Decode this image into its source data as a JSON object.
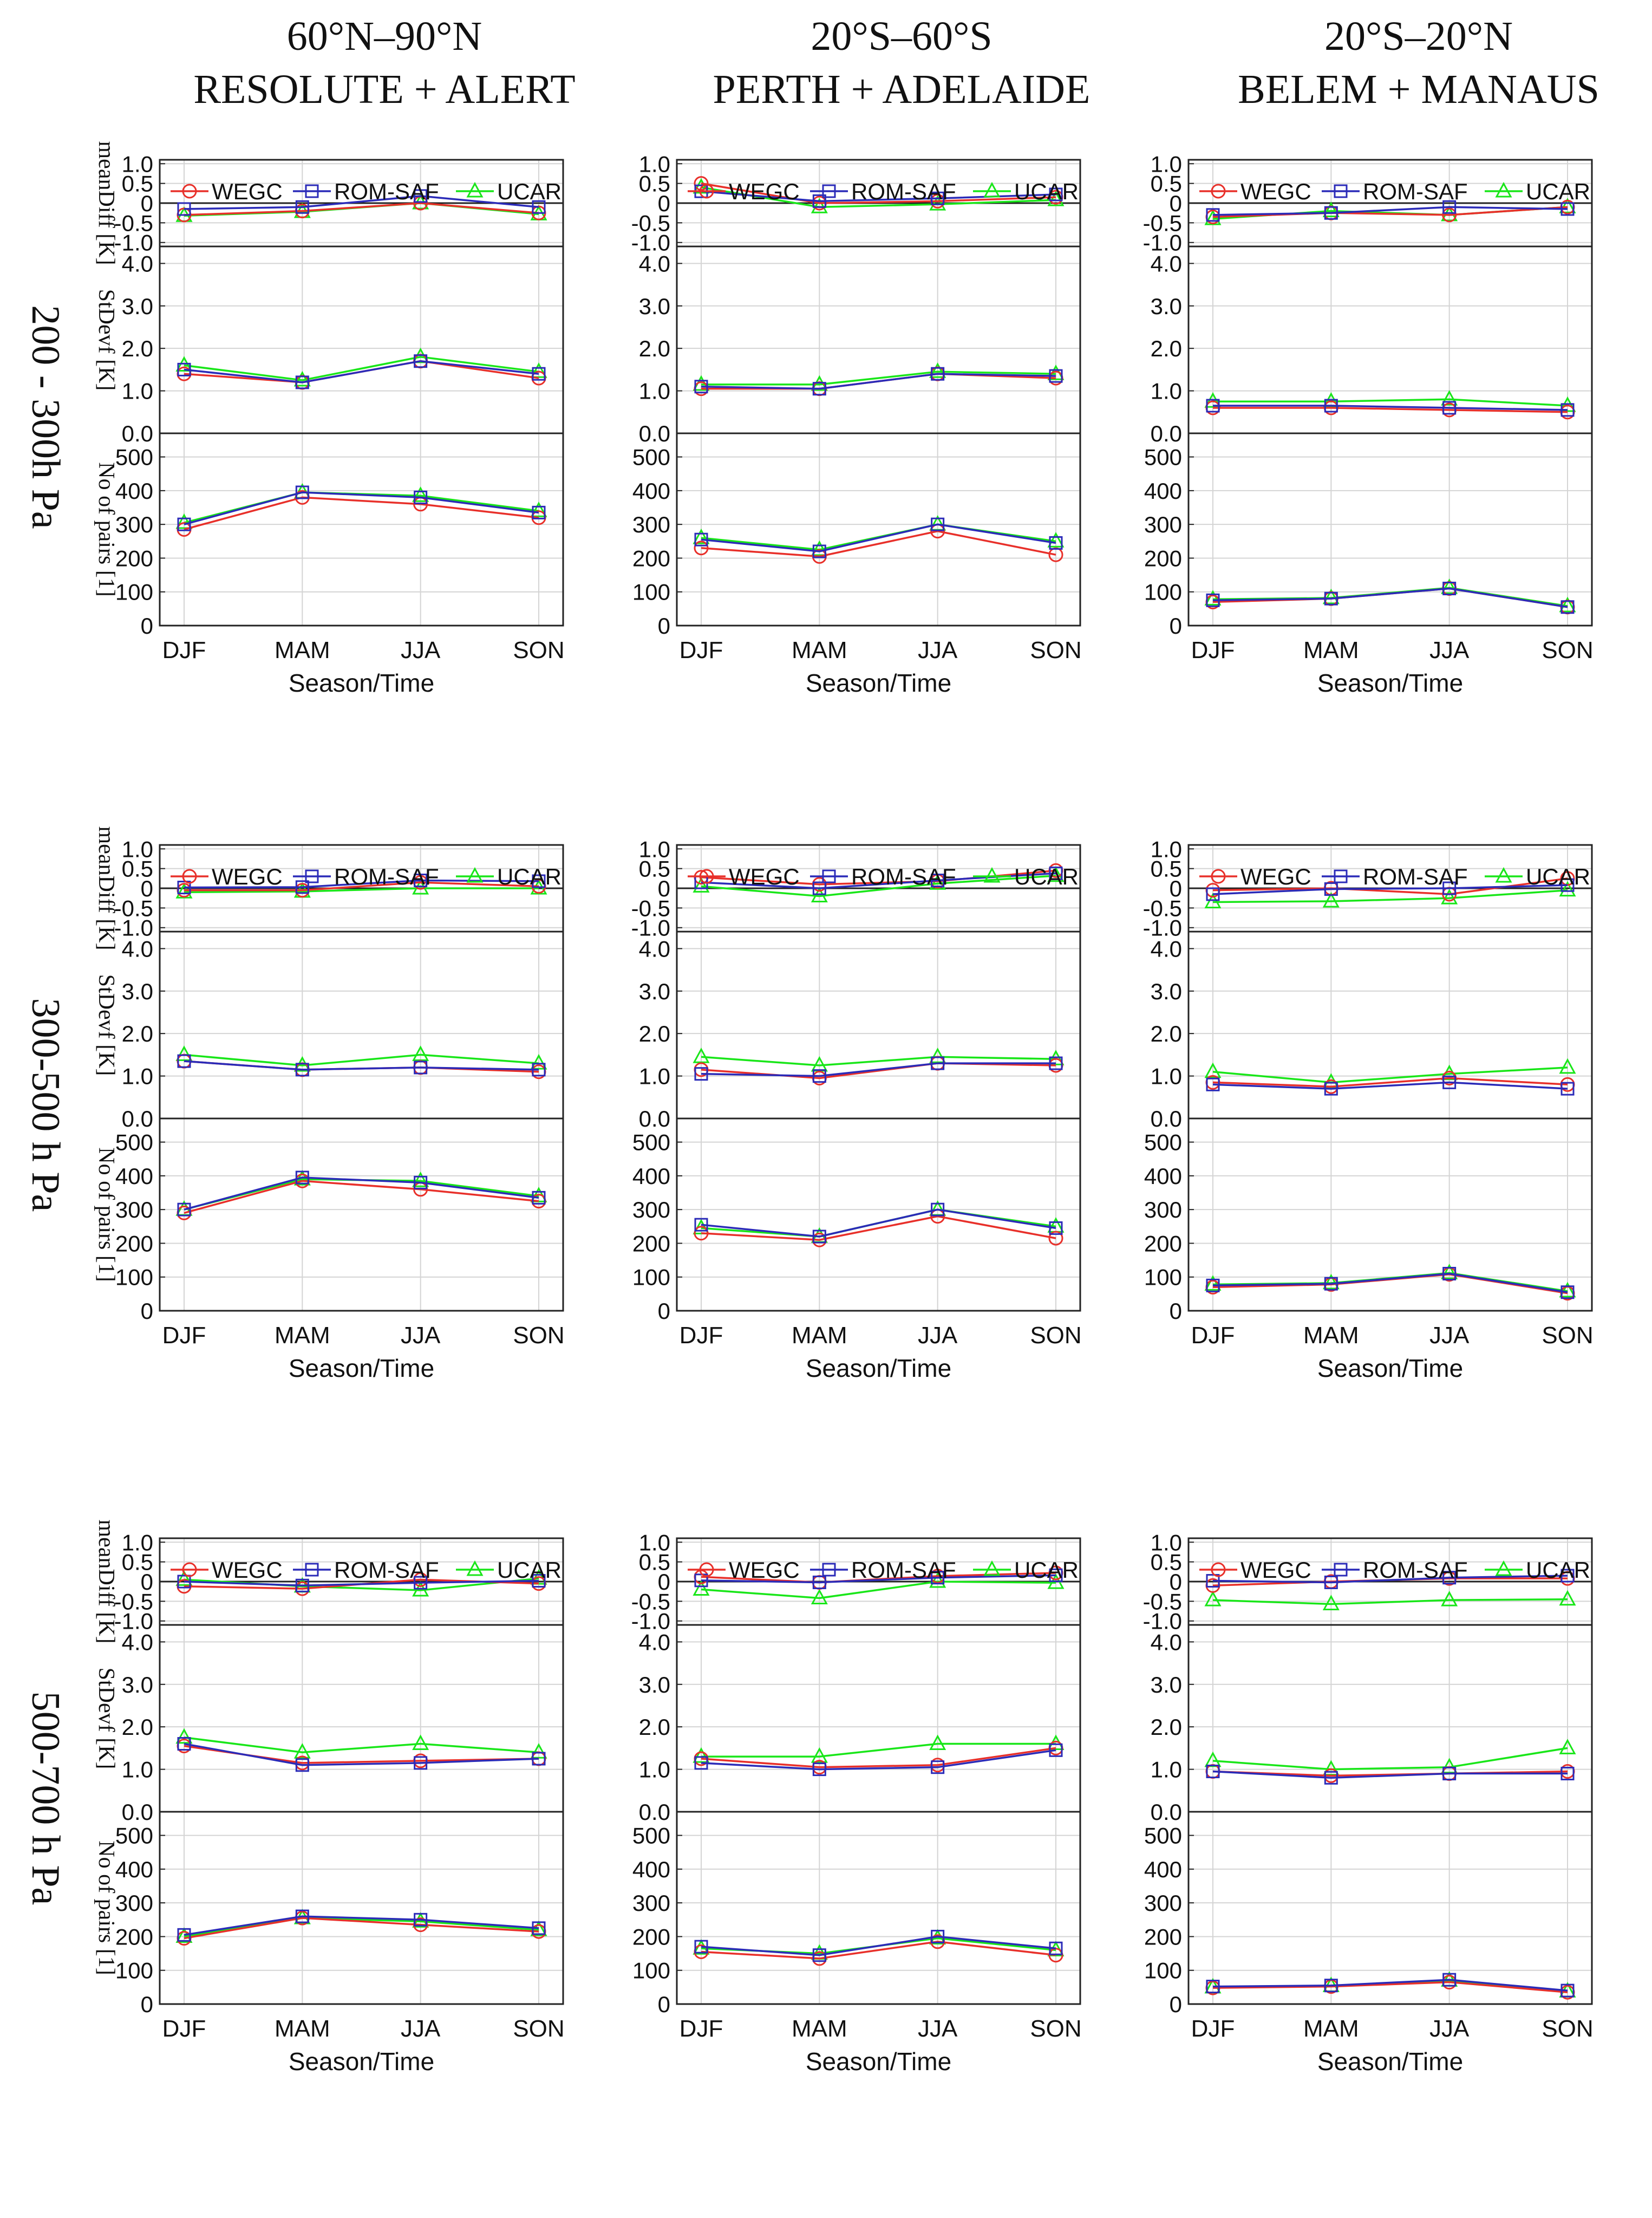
{
  "figure": {
    "columns": [
      {
        "title_line1": "60°N–90°N",
        "title_line2": "RESOLUTE + ALERT"
      },
      {
        "title_line1": "20°S–60°S",
        "title_line2": "PERTH + ADELAIDE"
      },
      {
        "title_line1": "20°S–20°N",
        "title_line2": "BELEM + MANAUS"
      }
    ],
    "rows": [
      "200 - 300h Pa",
      "300-500 h Pa",
      "500-700 h Pa"
    ],
    "colors": {
      "WEGC": "#e8302a",
      "ROM-SAF": "#2b2bb8",
      "UCAR": "#19e619",
      "zero_line": "#222222",
      "grid": "#d4d4d4"
    }
  },
  "chart_data": {
    "type": "line",
    "categories": [
      "DJF",
      "MAM",
      "JJA",
      "SON"
    ],
    "xlabel": "Season/Time",
    "legend": [
      "WEGC",
      "ROM-SAF",
      "UCAR"
    ],
    "legend_placement": "top, inside mean-difference panel",
    "panel_types": [
      {
        "key": "mean",
        "ylabel": "meanDiff [K]",
        "ylim": [
          -1.1,
          1.1
        ],
        "ticks": [
          1.0,
          0.5,
          0,
          -0.5,
          -1.0
        ],
        "tick_labels": [
          "1.0",
          "0.5",
          "0",
          "-0.5",
          "-1.0"
        ]
      },
      {
        "key": "sd",
        "ylabel": "StDevf [K]",
        "ylim": [
          0,
          4.4
        ],
        "ticks": [
          4.0,
          3.0,
          2.0,
          1.0,
          0.0
        ],
        "tick_labels": [
          "4.0",
          "3.0",
          "2.0",
          "1.0",
          "0.0"
        ]
      },
      {
        "key": "n",
        "ylabel": "No of pairs [1]",
        "ylim": [
          0,
          570
        ],
        "ticks": [
          500,
          400,
          300,
          200,
          100,
          0
        ],
        "tick_labels": [
          "500",
          "400",
          "300",
          "200",
          "100",
          "0"
        ]
      }
    ],
    "charts": [
      {
        "level": "200 - 300h Pa",
        "region": "60°N–90°N RESOLUTE + ALERT",
        "mean": {
          "WEGC": [
            -0.3,
            -0.2,
            0.0,
            -0.25
          ],
          "ROM-SAF": [
            -0.15,
            -0.1,
            0.18,
            -0.1
          ],
          "UCAR": [
            -0.32,
            -0.22,
            0.0,
            -0.28
          ]
        },
        "sd": {
          "WEGC": [
            1.4,
            1.2,
            1.7,
            1.3
          ],
          "ROM-SAF": [
            1.5,
            1.2,
            1.7,
            1.4
          ],
          "UCAR": [
            1.6,
            1.25,
            1.8,
            1.45
          ]
        },
        "n": {
          "WEGC": [
            285,
            380,
            360,
            320
          ],
          "ROM-SAF": [
            300,
            395,
            380,
            335
          ],
          "UCAR": [
            305,
            395,
            385,
            340
          ]
        }
      },
      {
        "level": "200 - 300h Pa",
        "region": "20°S–60°S PERTH + ADELAIDE",
        "mean": {
          "WEGC": [
            0.5,
            0.0,
            0.05,
            0.15
          ],
          "ROM-SAF": [
            0.3,
            0.05,
            0.12,
            0.22
          ],
          "UCAR": [
            0.4,
            -0.1,
            -0.03,
            0.08
          ]
        },
        "sd": {
          "WEGC": [
            1.05,
            1.05,
            1.4,
            1.3
          ],
          "ROM-SAF": [
            1.1,
            1.05,
            1.4,
            1.35
          ],
          "UCAR": [
            1.15,
            1.15,
            1.45,
            1.4
          ]
        },
        "n": {
          "WEGC": [
            230,
            205,
            280,
            210
          ],
          "ROM-SAF": [
            255,
            220,
            300,
            245
          ],
          "UCAR": [
            260,
            225,
            300,
            250
          ]
        }
      },
      {
        "level": "200 - 300h Pa",
        "region": "20°S–20°N BELEM + MANAUS",
        "mean": {
          "WEGC": [
            -0.35,
            -0.25,
            -0.3,
            -0.1
          ],
          "ROM-SAF": [
            -0.3,
            -0.25,
            -0.1,
            -0.15
          ],
          "UCAR": [
            -0.4,
            -0.2,
            -0.3,
            -0.1
          ]
        },
        "sd": {
          "WEGC": [
            0.6,
            0.6,
            0.55,
            0.5
          ],
          "ROM-SAF": [
            0.65,
            0.65,
            0.6,
            0.55
          ],
          "UCAR": [
            0.75,
            0.75,
            0.8,
            0.65
          ]
        },
        "n": {
          "WEGC": [
            70,
            80,
            110,
            55
          ],
          "ROM-SAF": [
            75,
            80,
            110,
            55
          ],
          "UCAR": [
            78,
            82,
            112,
            58
          ]
        }
      },
      {
        "level": "300-500 h Pa",
        "region": "60°N–90°N RESOLUTE + ALERT",
        "mean": {
          "WEGC": [
            -0.05,
            -0.05,
            0.15,
            0.05
          ],
          "ROM-SAF": [
            0.02,
            0.03,
            0.2,
            0.18
          ],
          "UCAR": [
            -0.1,
            -0.08,
            0.0,
            0.0
          ]
        },
        "sd": {
          "WEGC": [
            1.35,
            1.15,
            1.2,
            1.1
          ],
          "ROM-SAF": [
            1.35,
            1.15,
            1.2,
            1.15
          ],
          "UCAR": [
            1.5,
            1.25,
            1.5,
            1.3
          ]
        },
        "n": {
          "WEGC": [
            290,
            385,
            360,
            325
          ],
          "ROM-SAF": [
            300,
            395,
            380,
            335
          ],
          "UCAR": [
            300,
            390,
            385,
            340
          ]
        }
      },
      {
        "level": "300-500 h Pa",
        "region": "20°S–60°S PERTH + ADELAIDE",
        "mean": {
          "WEGC": [
            0.28,
            0.1,
            0.18,
            0.45
          ],
          "ROM-SAF": [
            0.15,
            0.0,
            0.2,
            0.38
          ],
          "UCAR": [
            0.05,
            -0.2,
            0.12,
            0.32
          ]
        },
        "sd": {
          "WEGC": [
            1.15,
            0.95,
            1.3,
            1.25
          ],
          "ROM-SAF": [
            1.05,
            1.0,
            1.3,
            1.3
          ],
          "UCAR": [
            1.45,
            1.25,
            1.45,
            1.4
          ]
        },
        "n": {
          "WEGC": [
            230,
            210,
            280,
            215
          ],
          "ROM-SAF": [
            255,
            220,
            300,
            245
          ],
          "UCAR": [
            245,
            220,
            300,
            250
          ]
        }
      },
      {
        "level": "300-500 h Pa",
        "region": "20°S–20°N BELEM + MANAUS",
        "mean": {
          "WEGC": [
            -0.05,
            0.0,
            -0.15,
            0.25
          ],
          "ROM-SAF": [
            -0.15,
            -0.02,
            0.0,
            0.08
          ],
          "UCAR": [
            -0.35,
            -0.33,
            -0.25,
            -0.05
          ]
        },
        "sd": {
          "WEGC": [
            0.85,
            0.75,
            0.95,
            0.8
          ],
          "ROM-SAF": [
            0.8,
            0.7,
            0.85,
            0.7
          ],
          "UCAR": [
            1.1,
            0.85,
            1.05,
            1.2
          ]
        },
        "n": {
          "WEGC": [
            70,
            78,
            108,
            52
          ],
          "ROM-SAF": [
            75,
            80,
            110,
            55
          ],
          "UCAR": [
            78,
            82,
            112,
            58
          ]
        }
      },
      {
        "level": "500-700 h Pa",
        "region": "60°N–90°N RESOLUTE + ALERT",
        "mean": {
          "WEGC": [
            -0.12,
            -0.18,
            0.05,
            -0.05
          ],
          "ROM-SAF": [
            0.0,
            -0.1,
            -0.03,
            0.02
          ],
          "UCAR": [
            0.05,
            -0.12,
            -0.22,
            0.08
          ]
        },
        "sd": {
          "WEGC": [
            1.55,
            1.15,
            1.2,
            1.25
          ],
          "ROM-SAF": [
            1.6,
            1.1,
            1.15,
            1.25
          ],
          "UCAR": [
            1.75,
            1.4,
            1.6,
            1.4
          ]
        },
        "n": {
          "WEGC": [
            195,
            255,
            235,
            215
          ],
          "ROM-SAF": [
            205,
            260,
            250,
            225
          ],
          "UCAR": [
            200,
            255,
            245,
            220
          ]
        }
      },
      {
        "level": "500-700 h Pa",
        "region": "20°S–60°S PERTH + ADELAIDE",
        "mean": {
          "WEGC": [
            0.12,
            -0.02,
            0.14,
            0.22
          ],
          "ROM-SAF": [
            0.03,
            -0.02,
            0.1,
            0.16
          ],
          "UCAR": [
            -0.2,
            -0.42,
            0.0,
            -0.03
          ]
        },
        "sd": {
          "WEGC": [
            1.25,
            1.05,
            1.1,
            1.5
          ],
          "ROM-SAF": [
            1.15,
            1.0,
            1.05,
            1.45
          ],
          "UCAR": [
            1.3,
            1.3,
            1.6,
            1.6
          ]
        },
        "n": {
          "WEGC": [
            155,
            135,
            185,
            145
          ],
          "ROM-SAF": [
            170,
            145,
            200,
            165
          ],
          "UCAR": [
            165,
            150,
            195,
            160
          ]
        }
      },
      {
        "level": "500-700 h Pa",
        "region": "20°S–20°N BELEM + MANAUS",
        "mean": {
          "WEGC": [
            -0.1,
            0.0,
            0.08,
            0.08
          ],
          "ROM-SAF": [
            0.02,
            -0.02,
            0.1,
            0.15
          ],
          "UCAR": [
            -0.47,
            -0.57,
            -0.47,
            -0.45
          ]
        },
        "sd": {
          "WEGC": [
            0.95,
            0.85,
            0.9,
            0.95
          ],
          "ROM-SAF": [
            0.95,
            0.8,
            0.9,
            0.9
          ],
          "UCAR": [
            1.2,
            1.0,
            1.05,
            1.5
          ]
        },
        "n": {
          "WEGC": [
            48,
            52,
            65,
            35
          ],
          "ROM-SAF": [
            52,
            55,
            72,
            40
          ],
          "UCAR": [
            50,
            54,
            70,
            38
          ]
        }
      }
    ]
  }
}
